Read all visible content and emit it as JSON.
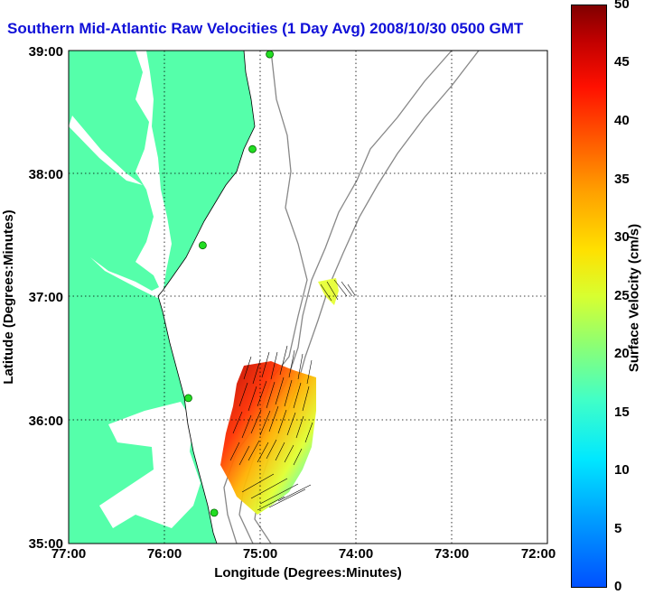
{
  "title": "Southern Mid-Atlantic Raw Velocities (1 Day Avg) 2008/10/30 0500 GMT",
  "xlabel": "Longitude (Degrees:Minutes)",
  "ylabel": "Latitude (Degrees:Minutes)",
  "x_ticks": [
    "77:00",
    "76:00",
    "75:00",
    "74:00",
    "73:00",
    "72:00"
  ],
  "y_ticks": [
    "39:00",
    "38:00",
    "37:00",
    "36:00",
    "35:00"
  ],
  "colorbar": {
    "label": "Surface Velocity (cm/s)",
    "ticks": [
      "50",
      "45",
      "40",
      "35",
      "30",
      "25",
      "20",
      "15",
      "10",
      "5",
      "0"
    ],
    "min": 0,
    "max": 50
  },
  "colors": {
    "land": "#55ffaa",
    "ocean": "#ffffff",
    "bathymetry": "#888888",
    "title": "#1010d8",
    "station": "#22dd22"
  },
  "map": {
    "lon_range": [
      -77,
      -72
    ],
    "lat_range": [
      35,
      39
    ],
    "grid": true
  },
  "stations": [
    {
      "lon": -74.9,
      "lat": 38.97
    },
    {
      "lon": -75.08,
      "lat": 38.2
    },
    {
      "lon": -75.6,
      "lat": 37.42
    },
    {
      "lon": -75.75,
      "lat": 36.18
    },
    {
      "lon": -75.48,
      "lat": 35.25
    }
  ]
}
